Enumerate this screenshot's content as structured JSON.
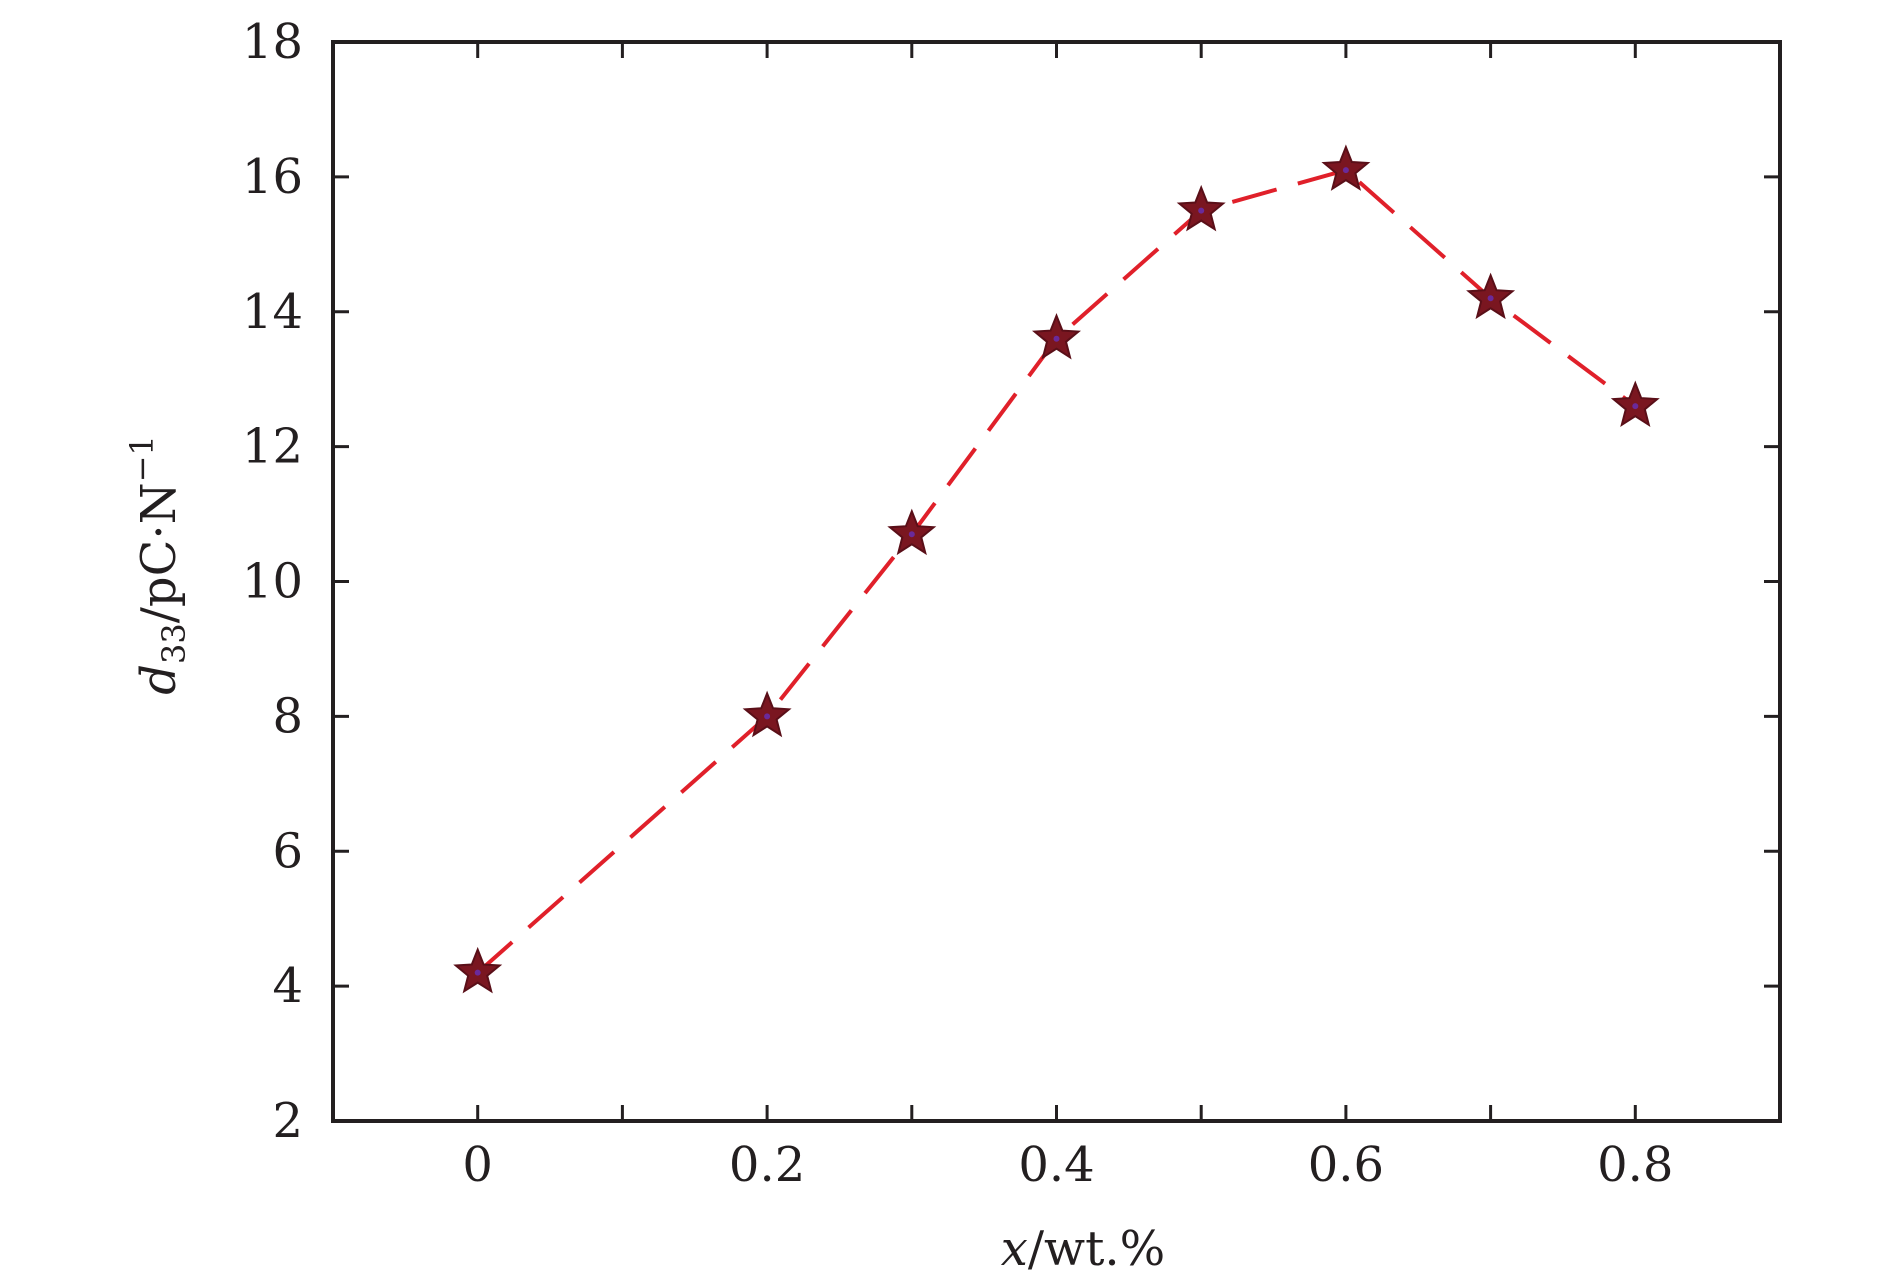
{
  "chart_data": {
    "type": "line",
    "x": [
      0,
      0.2,
      0.3,
      0.4,
      0.5,
      0.6,
      0.7,
      0.8
    ],
    "series": [
      {
        "values": [
          4.2,
          8.0,
          10.7,
          13.6,
          15.5,
          16.1,
          14.2,
          12.6
        ]
      }
    ],
    "xlabel": "x/wt.%",
    "ylabel": "d33/pC·N−1",
    "xlim": [
      -0.1,
      0.9
    ],
    "ylim": [
      2,
      18
    ],
    "xticks": [
      0,
      0.1,
      0.2,
      0.3,
      0.4,
      0.5,
      0.6,
      0.7,
      0.8
    ],
    "xtick_labels": [
      "0",
      "0.2",
      "0.4",
      "0.6",
      "0.8"
    ],
    "xtick_label_values": [
      0,
      0.2,
      0.4,
      0.6,
      0.8
    ],
    "yticks": [
      2,
      4,
      6,
      8,
      10,
      12,
      14,
      16,
      18
    ],
    "ytick_labels": [
      "2",
      "4",
      "6",
      "8",
      "10",
      "12",
      "14",
      "16",
      "18"
    ],
    "grid": false,
    "legend": "none",
    "line_style": "dashed",
    "marker": "star",
    "colors": {
      "line": "#e0202a",
      "marker_fill": "#7a1620",
      "marker_edge": "#5a0f18",
      "marker_center": "#6a2a9a",
      "axis": "#231f20"
    }
  }
}
